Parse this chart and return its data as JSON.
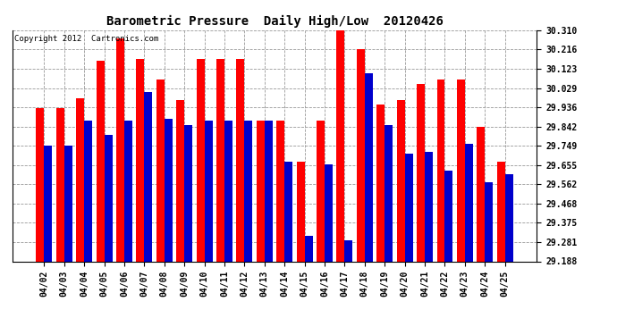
{
  "title": "Barometric Pressure  Daily High/Low  20120426",
  "copyright": "Copyright 2012  Cartronics.com",
  "dates": [
    "04/02",
    "04/03",
    "04/04",
    "04/05",
    "04/06",
    "04/07",
    "04/08",
    "04/09",
    "04/10",
    "04/11",
    "04/12",
    "04/13",
    "04/14",
    "04/15",
    "04/16",
    "04/17",
    "04/18",
    "04/19",
    "04/20",
    "04/21",
    "04/22",
    "04/23",
    "04/24",
    "04/25"
  ],
  "highs": [
    29.93,
    29.93,
    29.98,
    30.16,
    30.27,
    30.17,
    30.07,
    29.97,
    30.17,
    30.17,
    30.17,
    29.87,
    29.87,
    29.67,
    29.87,
    30.31,
    30.22,
    29.95,
    29.97,
    30.05,
    30.07,
    30.07,
    29.84,
    29.67
  ],
  "lows": [
    29.75,
    29.75,
    29.87,
    29.8,
    29.87,
    30.01,
    29.88,
    29.85,
    29.87,
    29.87,
    29.87,
    29.87,
    29.67,
    29.31,
    29.66,
    29.29,
    30.1,
    29.85,
    29.71,
    29.72,
    29.63,
    29.76,
    29.57,
    29.61
  ],
  "ymin": 29.188,
  "ymax": 30.31,
  "yticks": [
    29.188,
    29.281,
    29.375,
    29.468,
    29.562,
    29.655,
    29.749,
    29.842,
    29.936,
    30.029,
    30.123,
    30.216,
    30.31
  ],
  "bar_color_high": "#ff0000",
  "bar_color_low": "#0000cc",
  "bg_color": "#ffffff",
  "grid_color": "#999999",
  "title_fontsize": 10,
  "copyright_fontsize": 6.5,
  "tick_fontsize": 7
}
